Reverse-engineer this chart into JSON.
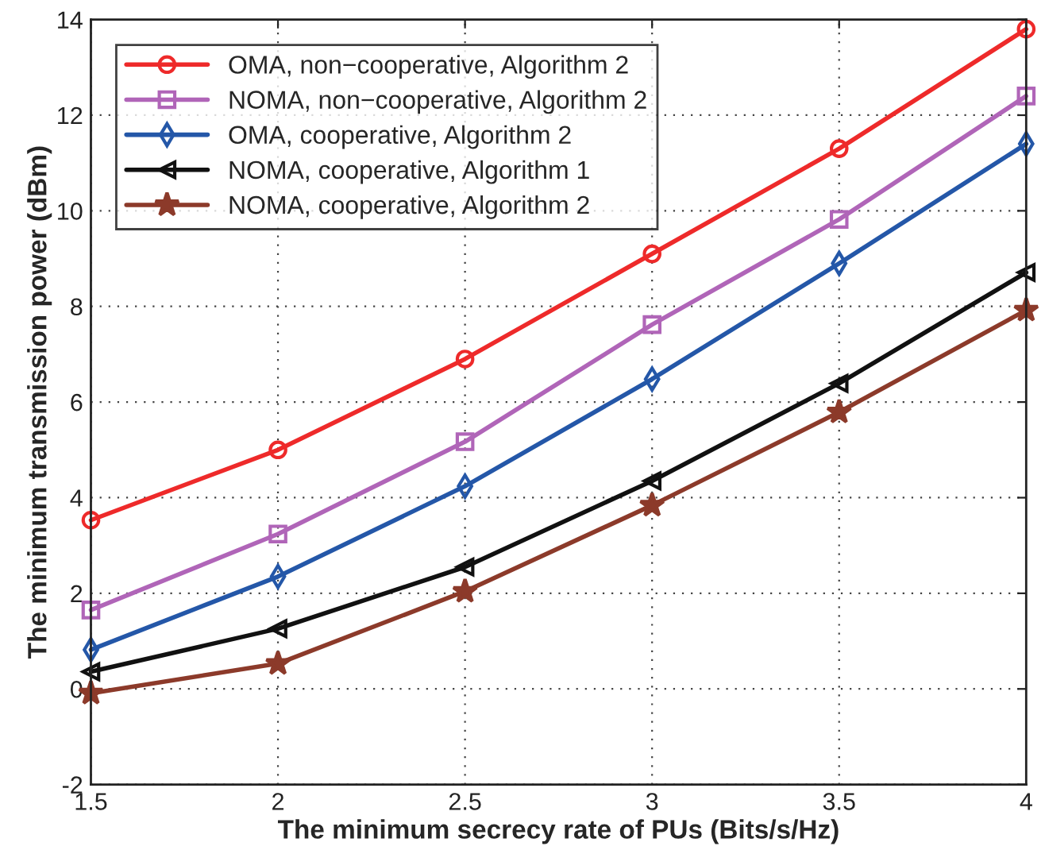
{
  "chart_data": {
    "type": "line",
    "xlabel": "The minimum secrecy rate of PUs (Bits/s/Hz)",
    "ylabel": "The minimum transmission power (dBm)",
    "x": [
      1.5,
      2,
      2.5,
      3,
      3.5,
      4
    ],
    "xlim": [
      1.5,
      4
    ],
    "xticks": [
      1.5,
      2,
      2.5,
      3,
      3.5,
      4
    ],
    "ylim": [
      -2,
      14
    ],
    "yticks": [
      -2,
      0,
      2,
      4,
      6,
      8,
      10,
      12,
      14
    ],
    "grid": true,
    "legend": "top left",
    "line_style": "solid",
    "series": [
      {
        "name": "OMA, non−cooperative, Algorithm 2",
        "color": "#ee2a2a",
        "marker": "circle",
        "values": [
          3.53,
          5.0,
          6.9,
          9.1,
          11.3,
          13.8
        ]
      },
      {
        "name": "NOMA, non−cooperative, Algorithm 2",
        "color": "#b065b8",
        "marker": "square",
        "values": [
          1.65,
          3.24,
          5.17,
          7.62,
          9.82,
          12.4
        ]
      },
      {
        "name": "OMA, cooperative, Algorithm 2",
        "color": "#2457a8",
        "marker": "diamond",
        "values": [
          0.82,
          2.35,
          4.24,
          6.48,
          8.9,
          11.4
        ]
      },
      {
        "name": "NOMA, cooperative, Algorithm 1",
        "color": "#111111",
        "marker": "triangle",
        "values": [
          0.36,
          1.26,
          2.55,
          4.35,
          6.39,
          8.71
        ]
      },
      {
        "name": "NOMA, cooperative, Algorithm 2",
        "color": "#8c3a2a",
        "marker": "star",
        "values": [
          -0.09,
          0.53,
          2.04,
          3.84,
          5.79,
          7.92
        ]
      }
    ]
  }
}
